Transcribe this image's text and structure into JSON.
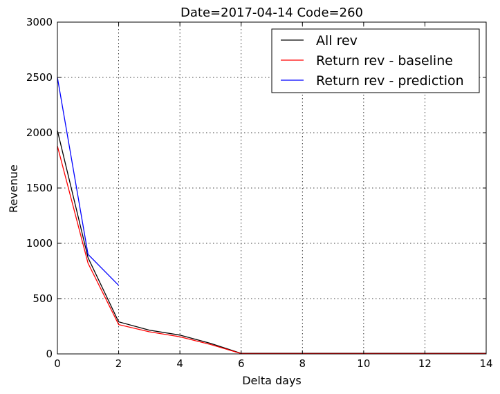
{
  "chart_data": {
    "type": "line",
    "title": "Date=2017-04-14 Code=260",
    "xlabel": "Delta days",
    "ylabel": "Revenue",
    "xlim": [
      0,
      14
    ],
    "ylim": [
      0,
      3000
    ],
    "xticks": [
      0,
      2,
      4,
      6,
      8,
      10,
      12,
      14
    ],
    "yticks": [
      0,
      500,
      1000,
      1500,
      2000,
      2500,
      3000
    ],
    "grid": true,
    "legend_position": "top-right",
    "series": [
      {
        "name": "All rev",
        "color": "#000000",
        "x": [
          0,
          1,
          2,
          3,
          4,
          5,
          6,
          7,
          8,
          9,
          10,
          11,
          12,
          13,
          14
        ],
        "y": [
          2020,
          870,
          290,
          215,
          170,
          95,
          5,
          5,
          5,
          5,
          5,
          5,
          5,
          5,
          5
        ]
      },
      {
        "name": "Return rev - baseline",
        "color": "#ff0000",
        "x": [
          0,
          1,
          2,
          3,
          4,
          5,
          6,
          7,
          8,
          9,
          10,
          11,
          12,
          13,
          14
        ],
        "y": [
          1880,
          820,
          265,
          200,
          155,
          85,
          3,
          3,
          3,
          3,
          3,
          3,
          3,
          3,
          3
        ]
      },
      {
        "name": "Return rev - prediction",
        "color": "#0000ff",
        "x": [
          0,
          1,
          2
        ],
        "y": [
          2500,
          900,
          620
        ]
      }
    ]
  }
}
